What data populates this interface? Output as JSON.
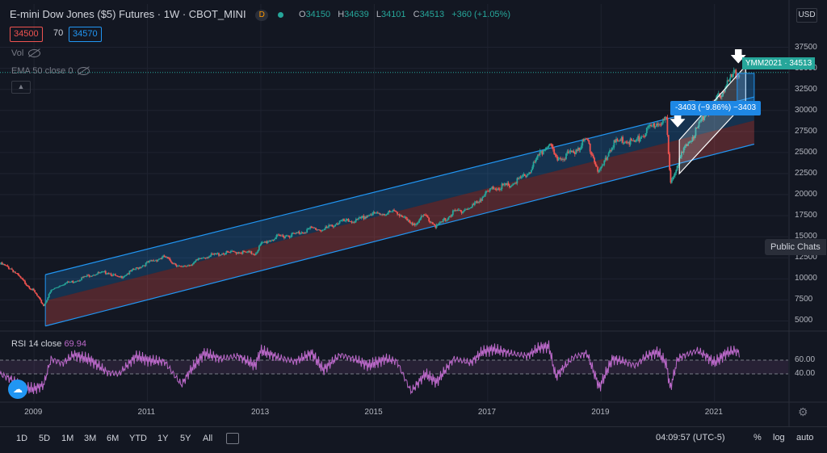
{
  "header": {
    "title": "E-mini Dow Jones ($5) Futures · 1W · CBOT_MINI",
    "badge": "D",
    "ohlc": {
      "o_label": "O",
      "o": "34150",
      "h_label": "H",
      "h": "34639",
      "l_label": "L",
      "l": "34101",
      "c_label": "C",
      "c": "34513",
      "change": "+360 (+1.05%)"
    },
    "bid": "34500",
    "spread": "70",
    "ask": "34570"
  },
  "indicators": {
    "vol": "Vol",
    "ema": "EMA 50 close 0",
    "rsi_label": "RSI 14 close",
    "rsi_value": "69.94"
  },
  "price_axis": {
    "currency": "USD",
    "ticks": [
      "37500",
      "35000",
      "32500",
      "30000",
      "27500",
      "25000",
      "22500",
      "20000",
      "17500",
      "15000",
      "12500",
      "10000",
      "7500",
      "5000"
    ],
    "current_label": "YMM2021 · 34513"
  },
  "rsi_axis": {
    "ticks": [
      "60.00",
      "40.00"
    ]
  },
  "time_axis": {
    "ticks": [
      "2009",
      "2011",
      "2013",
      "2015",
      "2017",
      "2019",
      "2021"
    ]
  },
  "measure_label": "-3403 (−9.86%) −3403",
  "public_chats": "Public Chats",
  "bottom_bar": {
    "timeframes": [
      "1D",
      "5D",
      "1M",
      "3M",
      "6M",
      "YTD",
      "1Y",
      "5Y",
      "All"
    ],
    "clock": "04:09:57 (UTC-5)",
    "percent": "%",
    "log": "log",
    "auto": "auto"
  },
  "colors": {
    "up": "#26a69a",
    "down": "#ef5350",
    "channel_upper": "#2196f3",
    "channel_lower": "#ef5350",
    "rsi": "#ba68c8",
    "background": "#131722"
  },
  "chart_data": {
    "type": "line",
    "title": "E-mini Dow Jones ($5) Futures · 1W · CBOT_MINI",
    "x_range": [
      2008.4,
      2022.3
    ],
    "y_range": [
      3800,
      38800
    ],
    "x": [
      2008.4,
      2008.6,
      2008.8,
      2009.0,
      2009.17,
      2009.3,
      2009.5,
      2009.7,
      2010.0,
      2010.3,
      2010.5,
      2010.8,
      2011.0,
      2011.3,
      2011.6,
      2011.75,
      2012.0,
      2012.3,
      2012.6,
      2012.9,
      2013.0,
      2013.3,
      2013.6,
      2013.9,
      2014.1,
      2014.4,
      2014.7,
      2014.9,
      2015.2,
      2015.4,
      2015.65,
      2015.9,
      2016.1,
      2016.4,
      2016.7,
      2016.9,
      2017.1,
      2017.4,
      2017.7,
      2017.9,
      2018.08,
      2018.2,
      2018.5,
      2018.75,
      2018.97,
      2019.2,
      2019.4,
      2019.6,
      2019.8,
      2020.0,
      2020.15,
      2020.22,
      2020.35,
      2020.5,
      2020.7,
      2020.85,
      2021.0,
      2021.2,
      2021.35,
      2021.45
    ],
    "values": [
      11800,
      11200,
      9800,
      8500,
      6800,
      8600,
      9400,
      9700,
      10500,
      10800,
      10100,
      11200,
      11900,
      12600,
      11300,
      11700,
      12600,
      13000,
      13200,
      13000,
      14100,
      15000,
      15300,
      16000,
      15800,
      16800,
      16900,
      17600,
      17800,
      18000,
      16400,
      17500,
      16200,
      17900,
      18400,
      19700,
      20800,
      21100,
      22400,
      24500,
      26200,
      24200,
      25000,
      26600,
      22500,
      26000,
      26500,
      26200,
      27500,
      28600,
      28800,
      21500,
      23800,
      25700,
      27900,
      29800,
      30800,
      33000,
      34300,
      34513
    ],
    "rsi": [
      40,
      32,
      20,
      18,
      24,
      62,
      55,
      68,
      60,
      42,
      40,
      66,
      60,
      58,
      24,
      44,
      70,
      62,
      66,
      52,
      74,
      64,
      58,
      70,
      46,
      68,
      60,
      52,
      62,
      58,
      14,
      40,
      28,
      62,
      56,
      72,
      76,
      70,
      66,
      78,
      80,
      36,
      64,
      70,
      20,
      62,
      58,
      52,
      66,
      72,
      55,
      18,
      62,
      68,
      74,
      66,
      56,
      70,
      74,
      69.94
    ],
    "rsi_range": [
      0,
      100
    ],
    "rsi_levels": [
      60,
      40
    ],
    "channel": {
      "start": {
        "x": 2009.2,
        "upper": 10500,
        "mid": 7400,
        "lower": 4400
      },
      "end": {
        "x": 2021.7,
        "upper": 31600,
        "mid": 28800,
        "lower": 26000
      }
    },
    "rising_channel": {
      "start": {
        "x": 2020.38,
        "upper": 26500,
        "lower": 22500
      },
      "end": {
        "x": 2021.55,
        "upper": 35300,
        "lower": 31000
      }
    },
    "measure": {
      "x_start": 2021.4,
      "x_end": 2021.7,
      "y_top": 34400,
      "y_bottom": 31000
    },
    "arrows": [
      {
        "x": 2020.35,
        "y": 28300
      },
      {
        "x": 2020.6,
        "y": 29800
      },
      {
        "x": 2021.42,
        "y": 35900
      }
    ]
  }
}
